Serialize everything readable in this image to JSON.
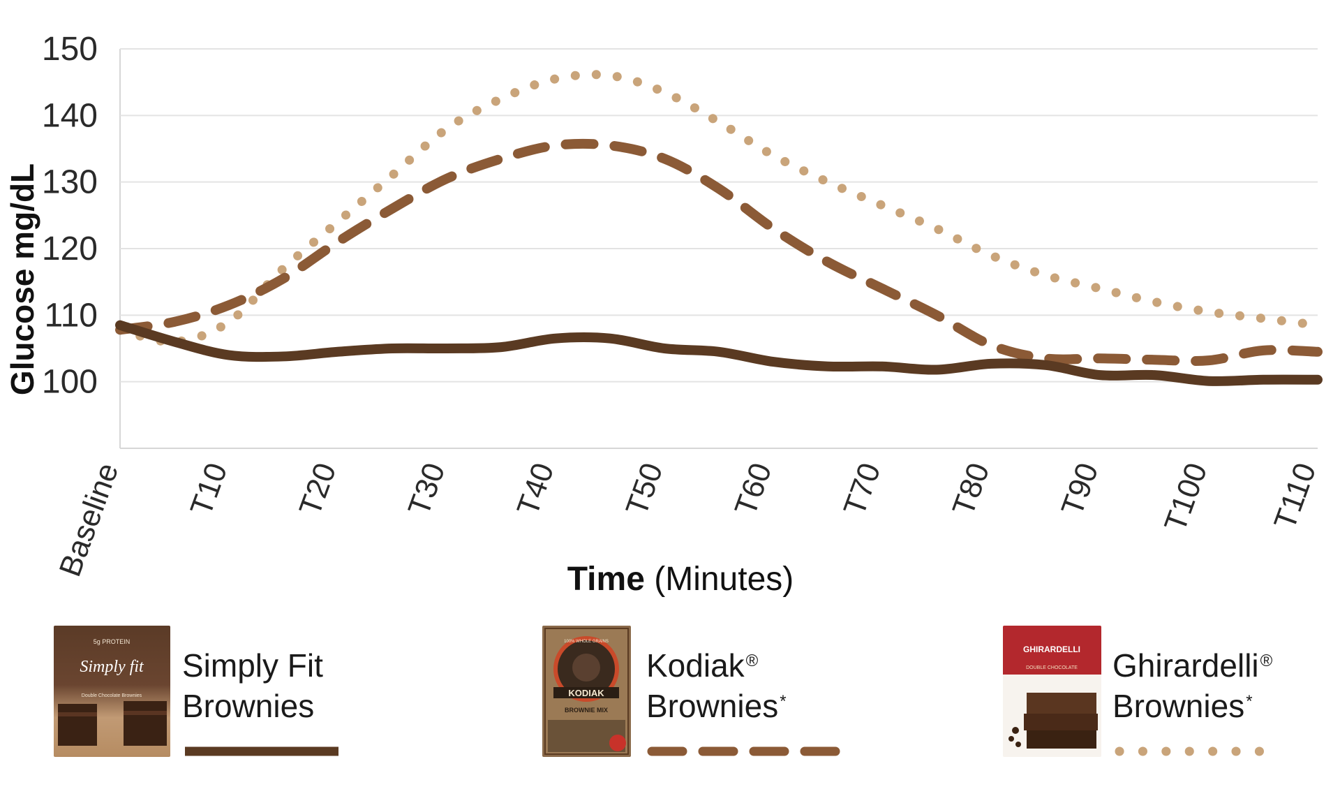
{
  "chart_data": {
    "type": "line",
    "xlabel_bold": "Time",
    "xlabel_rest": " (Minutes)",
    "ylabel": "Glucose mg/dL",
    "ylim": [
      90,
      150
    ],
    "yticks": [
      100,
      110,
      120,
      130,
      140,
      150
    ],
    "categories": [
      "Baseline",
      "T10",
      "T20",
      "T30",
      "T40",
      "T50",
      "T60",
      "T70",
      "T80",
      "T90",
      "T100",
      "T110"
    ],
    "grid": true,
    "series": [
      {
        "name": "Simply Fit Brownies",
        "style": "solid",
        "color": "#5a3a22",
        "x": [
          0,
          5,
          10,
          15,
          20,
          25,
          30,
          35,
          40,
          45,
          50,
          55,
          60,
          65,
          70,
          75,
          80,
          85,
          90,
          95,
          100,
          105,
          110
        ],
        "values": [
          108.5,
          106,
          104,
          103.8,
          104.5,
          105,
          105,
          105.2,
          106.5,
          106.5,
          105,
          104.5,
          103,
          102.3,
          102.3,
          101.8,
          102.7,
          102.5,
          101,
          101,
          100.1,
          100.3,
          100.3
        ]
      },
      {
        "name": "Kodiak Brownies",
        "style": "dashed",
        "color": "#8b5a36",
        "x": [
          0,
          5,
          10,
          15,
          20,
          25,
          30,
          35,
          40,
          45,
          50,
          55,
          60,
          65,
          70,
          75,
          80,
          85,
          90,
          95,
          100,
          105,
          110
        ],
        "values": [
          107.8,
          109,
          111.5,
          115.5,
          121,
          126,
          130.5,
          133.5,
          135.5,
          135.5,
          133.5,
          129,
          123,
          118,
          114,
          110,
          105.5,
          103.5,
          103.5,
          103.3,
          103.2,
          104.7,
          104.5
        ]
      },
      {
        "name": "Ghirardelli Brownies",
        "style": "dotted",
        "color": "#c9a47a",
        "x": [
          0,
          5,
          10,
          15,
          20,
          25,
          30,
          35,
          40,
          45,
          50,
          55,
          60,
          65,
          70,
          75,
          80,
          85,
          90,
          95,
          100,
          105,
          110
        ],
        "values": [
          107.8,
          106,
          109,
          117,
          124,
          131,
          138,
          142.5,
          145.5,
          146,
          143.5,
          139,
          134,
          130,
          126.5,
          123,
          119,
          116,
          114,
          112,
          110.5,
          109.5,
          108.5
        ]
      }
    ]
  },
  "legend": [
    {
      "name_line1": "Simply Fit",
      "name_line2": "Brownies",
      "mark1": "",
      "mark2": "",
      "thumb_text_top": "5g PROTEIN",
      "thumb_brand": "Simply fit",
      "thumb_sub": "Double Chocolate Brownies",
      "style": "solid"
    },
    {
      "name_line1": "Kodiak",
      "name_line2": "Brownies",
      "mark1": "®",
      "mark2": "*",
      "thumb_text_top": "100% WHOLE GRAINS",
      "thumb_brand": "KODIAK",
      "thumb_sub": "BROWNIE MIX",
      "style": "dashed"
    },
    {
      "name_line1": "Ghirardelli",
      "name_line2": "Brownies",
      "mark1": "®",
      "mark2": "*",
      "thumb_text_top": "GHIRARDELLI",
      "thumb_brand": "DOUBLE CHOCOLATE",
      "thumb_sub": "",
      "style": "dotted"
    }
  ],
  "colors": {
    "grid": "#e3e3e3",
    "axis": "#d6d6d6",
    "simply": "#5a3a22",
    "kodiak": "#8b5a36",
    "ghirardelli": "#c9a47a"
  }
}
